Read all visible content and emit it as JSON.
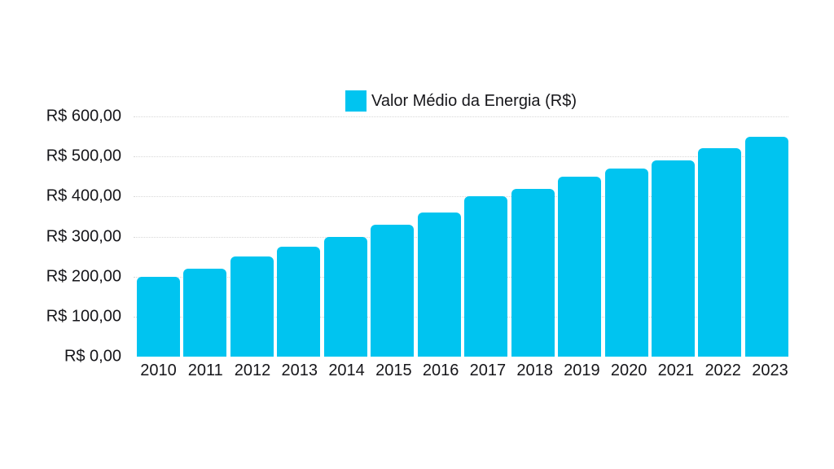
{
  "chart_data": {
    "type": "bar",
    "title": "",
    "legend": "Valor Médio da Energia (R$)",
    "legend_position": "top-center",
    "categories": [
      "2010",
      "2011",
      "2012",
      "2013",
      "2014",
      "2015",
      "2016",
      "2017",
      "2018",
      "2019",
      "2020",
      "2021",
      "2022",
      "2023"
    ],
    "values": [
      200,
      220,
      250,
      275,
      300,
      330,
      360,
      400,
      420,
      450,
      470,
      490,
      520,
      550
    ],
    "xlabel": "",
    "ylabel": "",
    "ylim": [
      0,
      600
    ],
    "y_ticks": [
      600,
      500,
      400,
      300,
      200,
      100,
      0
    ],
    "y_tick_labels": [
      "R$ 600,00",
      "R$ 500,00",
      "R$ 400,00",
      "R$ 300,00",
      "R$ 200,00",
      "R$ 100,00",
      "R$ 0,00"
    ],
    "grid": "horizontal-dotted",
    "bar_color": "#00c4f0",
    "background_color": "#ffffff"
  }
}
